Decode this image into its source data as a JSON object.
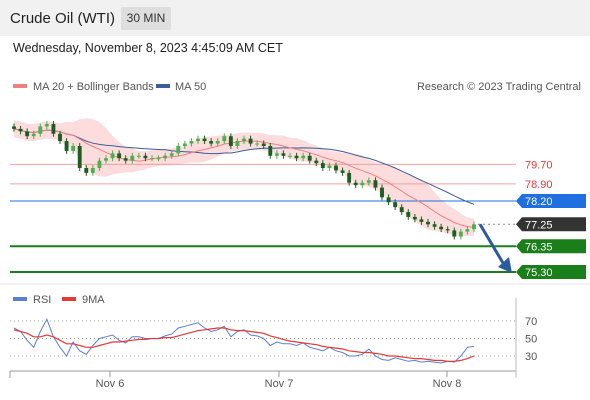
{
  "header": {
    "title": "Crude Oil (WTI)",
    "interval": "30 MIN",
    "datetime": "Wednesday, November 8, 2023 4:45:09 AM CET"
  },
  "colors": {
    "ma20": "#f08080",
    "bollinger_fill": "#fbd3d3",
    "ma50": "#3a5d9c",
    "candle_up": "#4caf50",
    "candle_down": "#1b5e20",
    "support": "#1a7f1a",
    "pivot": "#1f6fe0",
    "current": "#333333",
    "resistance_line": "#f2a0a0",
    "rsi": "#5b7fd6",
    "rsi_ma": "#e53935",
    "arrow": "#2d5a9c"
  },
  "chart_data": [
    {
      "type": "line",
      "name": "price",
      "legend": [
        {
          "label": "MA 20 + Bollinger Bands",
          "color": "#f08080"
        },
        {
          "label": "MA 50",
          "color": "#3a5d9c"
        }
      ],
      "source": "Research © 2023 Trading Central",
      "x_ticks": [
        "Nov 6",
        "Nov 7",
        "Nov 8"
      ],
      "levels": [
        {
          "value": 79.7,
          "label": "79.70",
          "kind": "resistance"
        },
        {
          "value": 78.9,
          "label": "78.90",
          "kind": "resistance"
        },
        {
          "value": 78.2,
          "label": "78.20",
          "kind": "pivot"
        },
        {
          "value": 77.25,
          "label": "77.25",
          "kind": "current"
        },
        {
          "value": 76.35,
          "label": "76.35",
          "kind": "support"
        },
        {
          "value": 75.3,
          "label": "75.30",
          "kind": "support"
        }
      ],
      "close": [
        81.15,
        81.05,
        80.85,
        80.95,
        81.25,
        81.35,
        80.95,
        80.65,
        80.25,
        80.45,
        79.55,
        79.35,
        79.55,
        79.85,
        79.95,
        80.15,
        79.95,
        79.85,
        80.05,
        80.05,
        79.95,
        79.95,
        79.95,
        80.05,
        80.15,
        80.45,
        80.55,
        80.65,
        80.75,
        80.65,
        80.55,
        80.65,
        80.85,
        80.45,
        80.65,
        80.75,
        80.55,
        80.55,
        80.45,
        80.05,
        80.15,
        80.05,
        80.05,
        79.95,
        80.05,
        79.85,
        79.75,
        79.55,
        79.65,
        79.45,
        79.35,
        78.95,
        78.85,
        78.95,
        79.05,
        78.75,
        78.35,
        78.15,
        77.95,
        77.75,
        77.55,
        77.45,
        77.35,
        77.25,
        77.15,
        77.05,
        77.0,
        76.75,
        76.95,
        77.05,
        77.25
      ]
    },
    {
      "type": "line",
      "name": "rsi",
      "legend": [
        {
          "label": "RSI",
          "color": "#5b7fd6"
        },
        {
          "label": "9MA",
          "color": "#e53935"
        }
      ],
      "y_ticks": [
        70,
        50,
        30
      ],
      "rsi": [
        62,
        58,
        48,
        40,
        58,
        72,
        52,
        40,
        30,
        46,
        36,
        32,
        42,
        50,
        52,
        54,
        48,
        45,
        52,
        52,
        50,
        50,
        50,
        53,
        55,
        62,
        64,
        66,
        68,
        62,
        58,
        60,
        64,
        52,
        58,
        60,
        54,
        53,
        50,
        42,
        46,
        44,
        44,
        42,
        45,
        40,
        38,
        36,
        40,
        36,
        34,
        30,
        30,
        32,
        38,
        30,
        26,
        25,
        28,
        26,
        24,
        25,
        23,
        24,
        23,
        22,
        24,
        23,
        30,
        40,
        41
      ],
      "rsi_ma": [
        60,
        58,
        56,
        52,
        52,
        54,
        52,
        48,
        44,
        44,
        42,
        40,
        40,
        42,
        44,
        46,
        46,
        47,
        48,
        49,
        49,
        50,
        50,
        51,
        51,
        53,
        55,
        57,
        59,
        60,
        61,
        62,
        62,
        60,
        59,
        59,
        58,
        57,
        56,
        53,
        51,
        49,
        47,
        46,
        45,
        44,
        43,
        41,
        40,
        39,
        38,
        36,
        35,
        34,
        34,
        33,
        32,
        30,
        30,
        29,
        28,
        27,
        27,
        26,
        25,
        25,
        24,
        24,
        25,
        27,
        30
      ]
    }
  ]
}
